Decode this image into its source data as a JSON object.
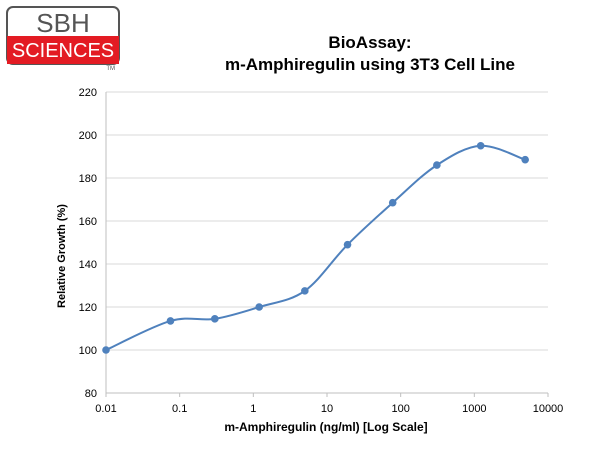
{
  "logo": {
    "top_text": "SBH",
    "bottom_text": "SCIENCES",
    "mark": "TM",
    "red": "#e31b23"
  },
  "chart_data": {
    "type": "line",
    "title": "BioAssay:",
    "subtitle": "m-Amphiregulin using 3T3 Cell Line",
    "xlabel": "m-Amphiregulin (ng/ml) [Log Scale]",
    "ylabel": "Relative Growth (%)",
    "x_scale": "log",
    "xlim": [
      0.01,
      10000
    ],
    "ylim": [
      80,
      220
    ],
    "x_ticks": [
      "0.01",
      "0.1",
      "1",
      "10",
      "100",
      "1000",
      "10000"
    ],
    "y_ticks": [
      "80",
      "100",
      "120",
      "140",
      "160",
      "180",
      "200",
      "220"
    ],
    "grid": "horizontal",
    "series": [
      {
        "color": "#4f81bd",
        "x": [
          0.01,
          0.075,
          0.3,
          1.2,
          5,
          19,
          78,
          310,
          1220,
          4900
        ],
        "y": [
          100,
          113.5,
          114.5,
          120,
          127.5,
          149,
          168.5,
          186,
          195,
          188.5
        ]
      }
    ]
  }
}
